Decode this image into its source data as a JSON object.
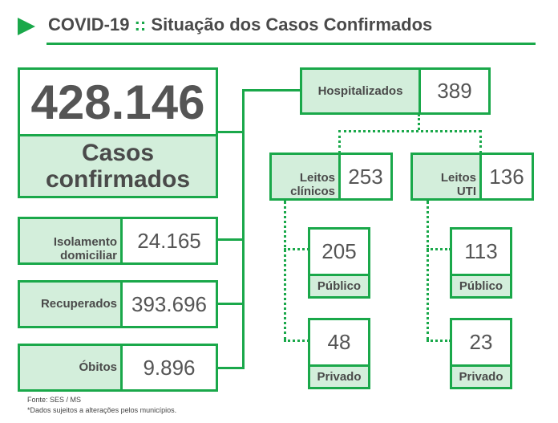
{
  "header": {
    "title_prefix": "COVID-19",
    "separator": "::",
    "title_main": "Situação dos Casos Confirmados"
  },
  "total": {
    "value": "428.146",
    "label_line1": "Casos",
    "label_line2": "confirmados"
  },
  "isolamento": {
    "label_line1": "Isolamento",
    "label_line2": "domiciliar",
    "value": "24.165"
  },
  "recuperados": {
    "label": "Recuperados",
    "value": "393.696"
  },
  "obitos": {
    "label": "Óbitos",
    "value": "9.896"
  },
  "hospitalizados": {
    "label": "Hospitalizados",
    "value": "389"
  },
  "leitos_clinicos": {
    "label_line1": "Leitos",
    "label_line2": "clínicos",
    "value": "253",
    "publico": {
      "value": "205",
      "label": "Público"
    },
    "privado": {
      "value": "48",
      "label": "Privado"
    }
  },
  "leitos_uti": {
    "label_line1": "Leitos",
    "label_line2": "UTI",
    "value": "136",
    "publico": {
      "value": "113",
      "label": "Público"
    },
    "privado": {
      "value": "23",
      "label": "Privado"
    }
  },
  "footer": {
    "source": "Fonte: SES / MS",
    "note": "*Dados sujeitos a alterações pelos municípios."
  },
  "colors": {
    "accent": "#1aa84a",
    "fill": "#d3eedb",
    "text": "#555555"
  }
}
